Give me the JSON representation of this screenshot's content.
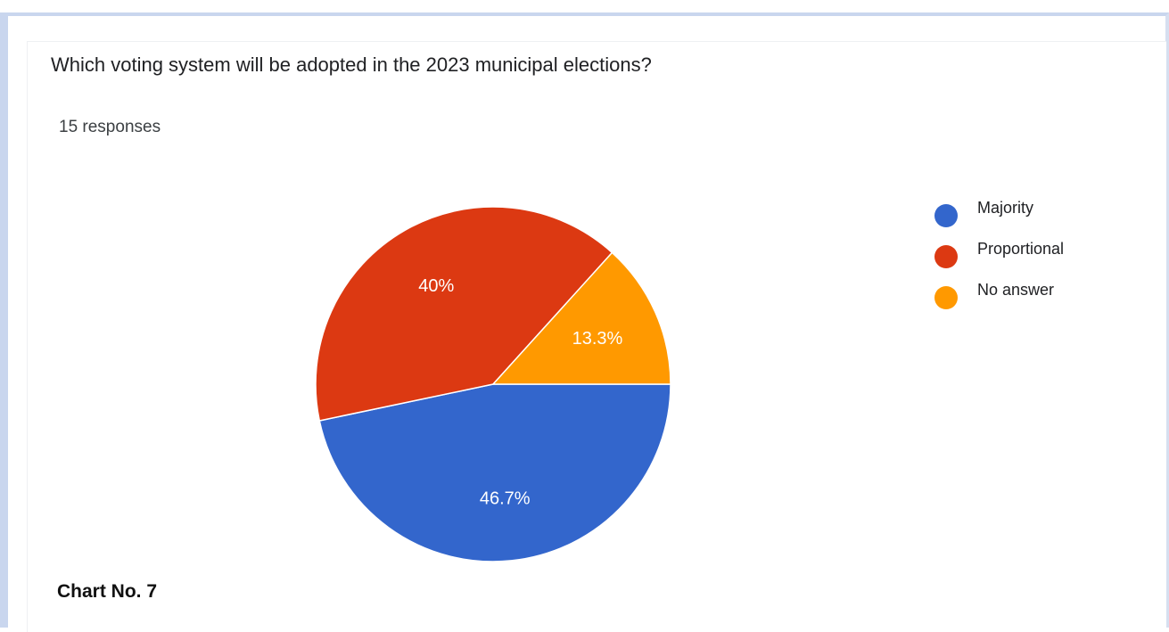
{
  "question": "Which voting system will be adopted in the 2023 municipal elections?",
  "response_count": "15 responses",
  "caption": "Chart No. 7",
  "chart_data": {
    "type": "pie",
    "slices": [
      {
        "label": "Majority",
        "value": 46.7,
        "display": "46.7%",
        "color": "#3366cc"
      },
      {
        "label": "Proportional",
        "value": 40,
        "display": "40%",
        "color": "#dc3912"
      },
      {
        "label": "No answer",
        "value": 13.3,
        "display": "13.3%",
        "color": "#ff9900"
      }
    ],
    "legend": {
      "position": "right"
    }
  }
}
